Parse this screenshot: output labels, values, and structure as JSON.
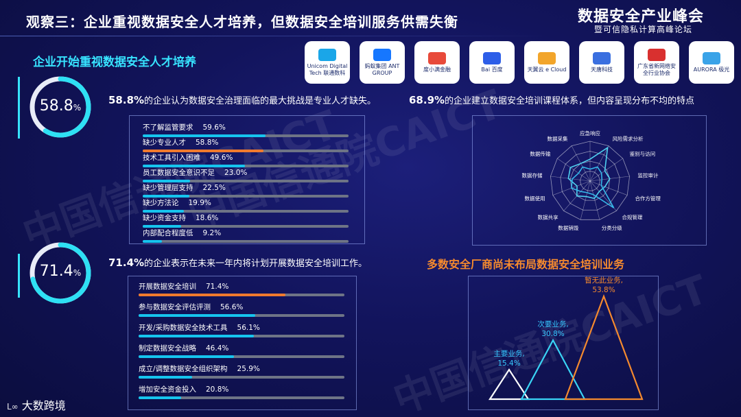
{
  "header": {
    "title": "观察三：企业重视数据安全人才培养，但数据安全培训服务供需失衡",
    "brand_title": "数据安全产业峰会",
    "brand_subtitle": "暨可信隐私计算高峰论坛"
  },
  "section1": {
    "heading": "企业开始重视数据安全人才培养"
  },
  "logos": [
    {
      "name": "Unicom Digital Tech 联通数科",
      "color": "#1aa6e8"
    },
    {
      "name": "蚂蚁集团 ANT GROUP",
      "color": "#1677ff"
    },
    {
      "name": "度小满金融",
      "color": "#e84a3a"
    },
    {
      "name": "Bai 百度",
      "color": "#2d5ee8"
    },
    {
      "name": "天翼云 e Cloud",
      "color": "#f2a52b"
    },
    {
      "name": "天唐科技",
      "color": "#3a6fe0"
    },
    {
      "name": "广东省新网络安全行业协会",
      "color": "#d9302f"
    },
    {
      "name": "AURORA 极光",
      "color": "#3aa3e8"
    }
  ],
  "stat1": {
    "ring_value": "58.8",
    "ring_unit": "%",
    "ring_fraction": 0.588,
    "bold": "58.8%",
    "text": "的企业认为数据安全治理面临的最大挑战是专业人才缺失。"
  },
  "stat2": {
    "bold": "68.9%",
    "text": "的企业建立数据安全培训课程体系，但内容呈现分布不均的特点"
  },
  "stat3": {
    "ring_value": "71.4",
    "ring_unit": "%",
    "ring_fraction": 0.714,
    "bold": "71.4%",
    "text": "的企业表示在未来一年内将计划开展数据安全培训工作。"
  },
  "challenges": [
    {
      "label": "不了解监管要求",
      "value": 59.6,
      "text": "59.6%",
      "highlight": false
    },
    {
      "label": "缺少专业人才",
      "value": 58.8,
      "text": "58.8%",
      "highlight": true
    },
    {
      "label": "技术工具引入困难",
      "value": 49.6,
      "text": "49.6%",
      "highlight": false
    },
    {
      "label": "员工数据安全意识不足",
      "value": 23.0,
      "text": "23.0%",
      "highlight": false
    },
    {
      "label": "缺少管理层支持",
      "value": 22.5,
      "text": "22.5%",
      "highlight": false
    },
    {
      "label": "缺少方法论",
      "value": 19.9,
      "text": "19.9%",
      "highlight": false
    },
    {
      "label": "缺少资金支持",
      "value": 18.6,
      "text": "18.6%",
      "highlight": false
    },
    {
      "label": "内部配合程度低",
      "value": 9.2,
      "text": "9.2%",
      "highlight": false
    }
  ],
  "plans": [
    {
      "label": "开展数据安全培训",
      "value": 71.4,
      "text": "71.4%",
      "highlight": true
    },
    {
      "label": "参与数据安全评估评测",
      "value": 56.6,
      "text": "56.6%",
      "highlight": false
    },
    {
      "label": "开发/采购数据安全技术工具",
      "value": 56.1,
      "text": "56.1%",
      "highlight": false
    },
    {
      "label": "制定数据安全战略",
      "value": 46.4,
      "text": "46.4%",
      "highlight": false
    },
    {
      "label": "成立/调整数据安全组织架构",
      "value": 25.9,
      "text": "25.9%",
      "highlight": false
    },
    {
      "label": "增加安全资金投入",
      "value": 20.8,
      "text": "20.8%",
      "highlight": false
    }
  ],
  "radar": {
    "axes": [
      "应急响应",
      "风险需求分析",
      "鉴别与访问",
      "监控审计",
      "合作方管理",
      "合规管理",
      "分类分级",
      "数据销毁",
      "数据共享",
      "数据使用",
      "数据存储",
      "数据传输",
      "数据采集"
    ],
    "series_a": [
      0.55,
      0.95,
      0.45,
      0.5,
      0.4,
      0.35,
      0.45,
      0.4,
      0.5,
      0.35,
      0.55,
      0.6,
      0.5
    ],
    "series_b": [
      0.3,
      0.4,
      0.35,
      0.3,
      0.3,
      0.9,
      0.35,
      0.3,
      0.35,
      0.5,
      0.45,
      0.35,
      0.4
    ],
    "colors": {
      "a": "#4fd1f0",
      "b": "#36b7e8"
    }
  },
  "section2": {
    "heading": "多数安全厂商尚未布局数据安全培训业务"
  },
  "business": [
    {
      "name": "主要业务,",
      "value": 15.4,
      "text": "15.4%",
      "color": "#ffffff",
      "label_color": "#37c9ff"
    },
    {
      "name": "次要业务,",
      "value": 30.8,
      "text": "30.8%",
      "color": "#3ad4f5",
      "label_color": "#37c9ff"
    },
    {
      "name": "暂无此业务,",
      "value": 53.8,
      "text": "53.8%",
      "color": "#f58a2e",
      "label_color": "#f58a2e"
    }
  ],
  "watermark": [
    "中国信通院CAICT",
    "中国信通院CAICT",
    "中国信通院CAICT"
  ],
  "footer": {
    "logo_text": "大数跨境"
  }
}
